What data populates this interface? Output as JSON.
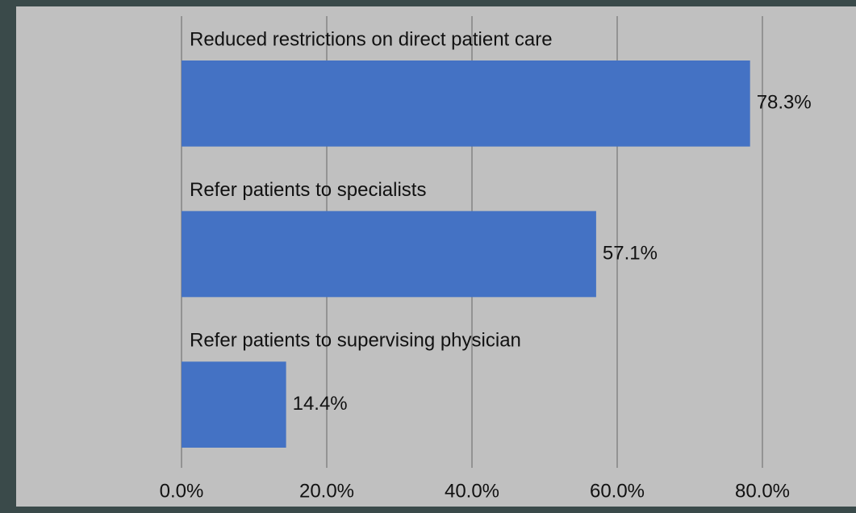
{
  "chart_data": {
    "type": "hbar",
    "categories": [
      "Reduced restrictions on direct patient care",
      "Refer patients to specialists",
      "Refer patients to supervising physician"
    ],
    "values": [
      78.3,
      57.1,
      14.4
    ],
    "value_labels": [
      "78.3%",
      "57.1%",
      "14.4%"
    ],
    "color": "#4472c4",
    "xlim": [
      0,
      85
    ],
    "xticks": [
      {
        "value": 0,
        "label": "0.0%"
      },
      {
        "value": 20,
        "label": "20.0%"
      },
      {
        "value": 40,
        "label": "40.0%"
      },
      {
        "value": 60,
        "label": "60.0%"
      },
      {
        "value": 80,
        "label": "80.0%"
      }
    ],
    "grid": true
  }
}
